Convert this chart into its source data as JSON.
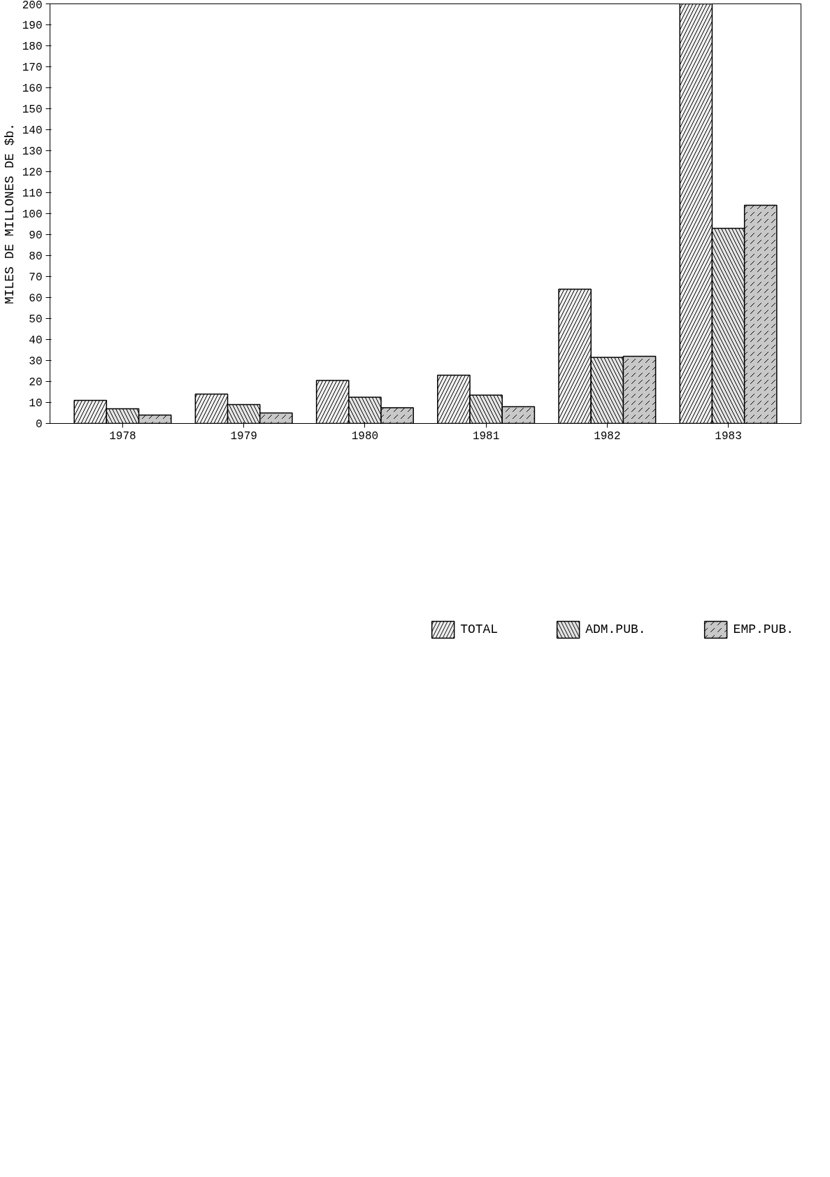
{
  "chart_data": {
    "type": "bar",
    "ylabel": "MILES DE MILLONES DE $b.",
    "categories": [
      "1978",
      "1979",
      "1980",
      "1981",
      "1982",
      "1983"
    ],
    "series": [
      {
        "name": "TOTAL",
        "color": "#f0f0f0",
        "values": [
          11,
          14,
          20.5,
          23,
          64,
          200
        ]
      },
      {
        "name": "ADM.PUB.",
        "color": "#e4e4e4",
        "values": [
          7,
          9,
          12.5,
          13.5,
          31.5,
          93
        ]
      },
      {
        "name": "EMP.PUB.",
        "color": "#c8c8c8",
        "values": [
          4,
          5,
          7.5,
          8,
          32,
          104
        ]
      }
    ],
    "ylim": [
      0,
      200
    ],
    "yticks": [
      0,
      10,
      20,
      30,
      40,
      50,
      60,
      70,
      80,
      90,
      100,
      110,
      120,
      130,
      140,
      150,
      160,
      170,
      180,
      190,
      200
    ],
    "grid": false,
    "legend": "bottom"
  }
}
